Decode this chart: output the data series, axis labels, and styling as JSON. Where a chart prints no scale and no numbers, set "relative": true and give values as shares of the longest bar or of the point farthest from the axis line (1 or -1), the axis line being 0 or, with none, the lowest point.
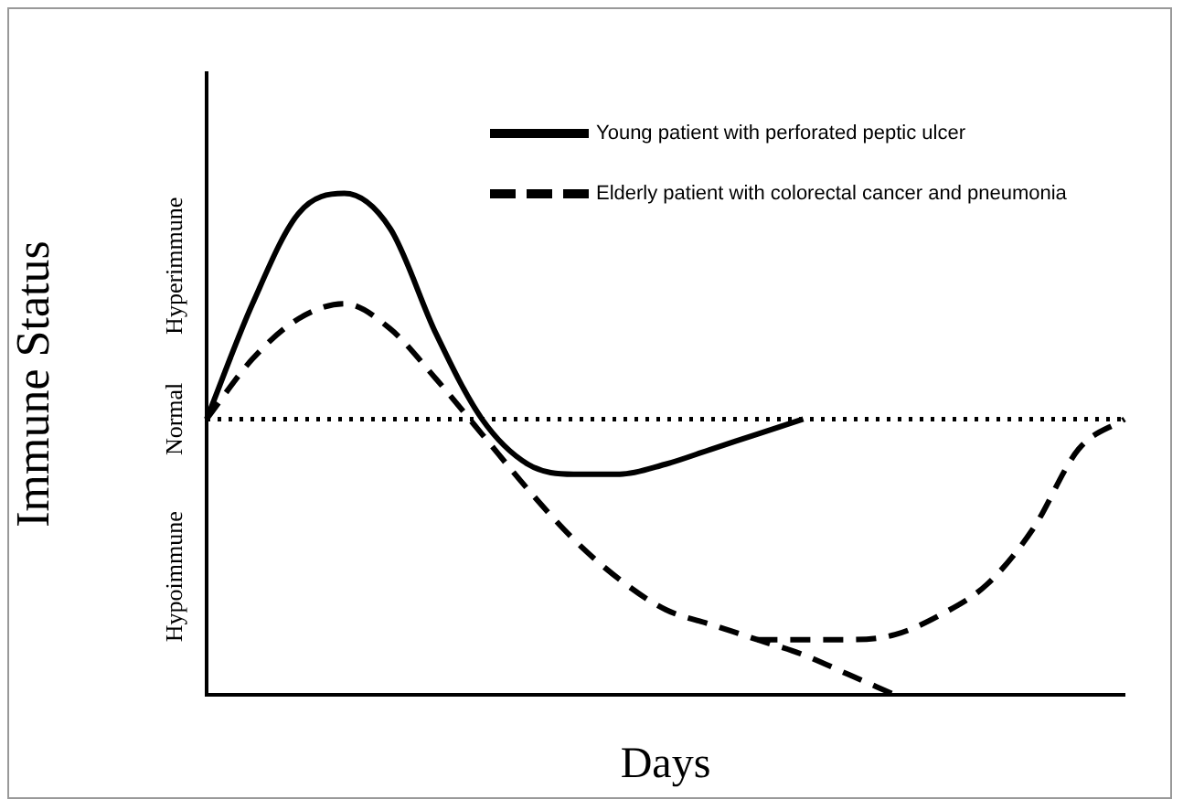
{
  "chart_data": {
    "type": "line",
    "relative": true,
    "xlabel": "Days",
    "ylabel": "Immune Status",
    "categories": [
      null,
      null,
      null,
      null,
      null,
      null,
      null,
      null,
      null,
      null,
      null,
      null,
      null,
      null,
      null,
      null,
      null,
      null,
      null,
      null,
      null
    ],
    "annotations": [
      "Hyperimmune",
      "Hypoimmune"
    ],
    "series": [
      {
        "name": "Young patient with perforated peptic ulcer",
        "color": "#000000",
        "line_style": "solid",
        "values": [
          0.55,
          0.78,
          0.96,
          1,
          0.93,
          0.72,
          0.55,
          0.46,
          0.44,
          0.44,
          0.46,
          0.49,
          0.52,
          0.55,
          null,
          null,
          null,
          null,
          null,
          null,
          null
        ]
      },
      {
        "name": "Elderly patient with colorectal cancer and pneumonia",
        "color": "#000000",
        "line_style": "dashed",
        "values": [
          0.55,
          0.67,
          0.75,
          0.78,
          0.73,
          0.63,
          0.52,
          0.41,
          0.31,
          0.23,
          0.17,
          0.14,
          0.11,
          0.08,
          0.04,
          0,
          null,
          null,
          null,
          null,
          null
        ]
      },
      {
        "color": "#000000",
        "line_style": "dashed",
        "values": [
          null,
          null,
          null,
          null,
          null,
          null,
          null,
          null,
          null,
          null,
          null,
          null,
          0.11,
          0.11,
          0.11,
          0.12,
          0.16,
          0.22,
          0.33,
          0.49,
          0.55
        ]
      }
    ],
    "ref_lines": [
      {
        "axis": "y",
        "value": 0.55,
        "label": "Normal",
        "line_style": "dotted",
        "color": "#000000"
      }
    ],
    "legend": "top right",
    "marker": "none",
    "grid": false
  }
}
